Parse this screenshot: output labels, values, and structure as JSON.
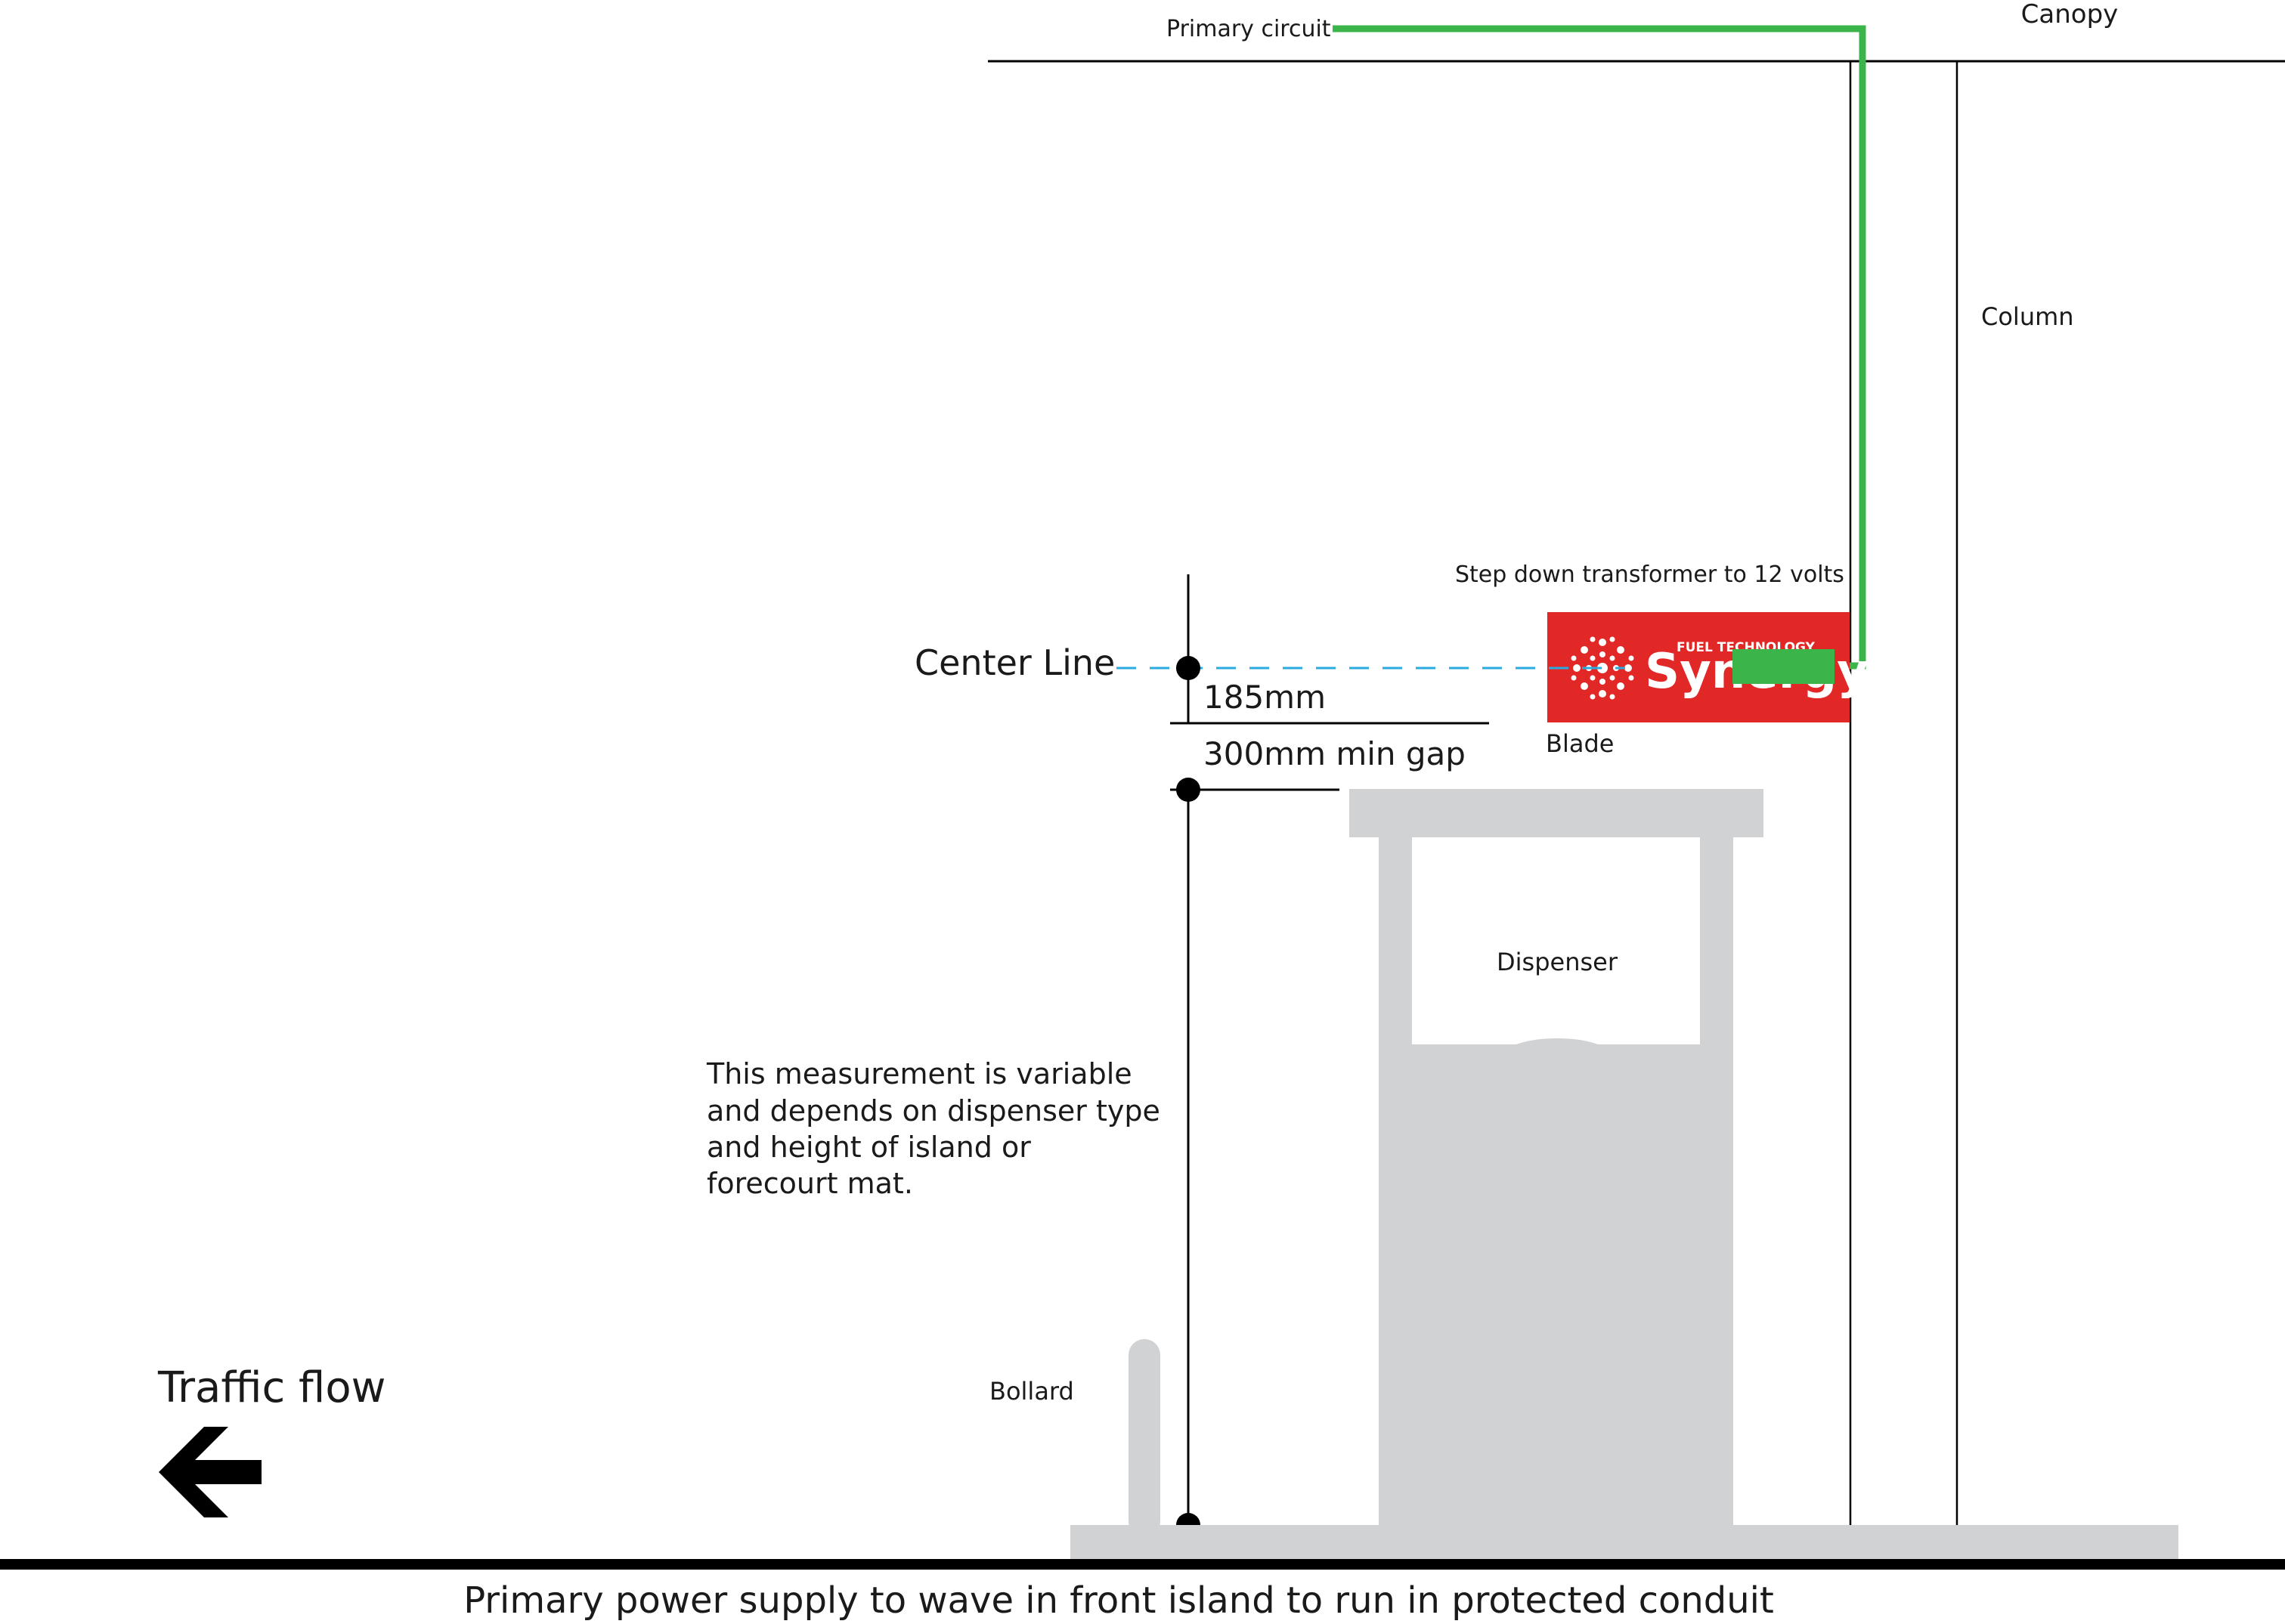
{
  "labels": {
    "primary_circuit": "Primary circuit",
    "canopy": "Canopy",
    "column": "Column",
    "step_down": "Step down transformer to 12 volts",
    "center_line": "Center Line",
    "dim_185": "185mm",
    "dim_300": "300mm min gap",
    "blade": "Blade",
    "dispenser": "Dispenser",
    "note": [
      "This measurement is variable",
      "and depends on dispenser type",
      "and height of island or",
      "forecourt mat."
    ],
    "bollard": "Bollard",
    "traffic_flow": "Traffic flow",
    "footer": "Primary power supply to wave in front island to run in protected conduit"
  },
  "logo": {
    "small_text": "FUEL TECHNOLOGY",
    "brand": "Synergy"
  },
  "colors": {
    "circuit": "#3bb54a",
    "blade": "#e12826",
    "center_line": "#29abe2",
    "structure": "#d1d2d4",
    "ink": "#000000"
  },
  "icons": {
    "traffic_arrow": "arrow-left-icon",
    "logo_mark": "sunburst-dots-icon"
  }
}
